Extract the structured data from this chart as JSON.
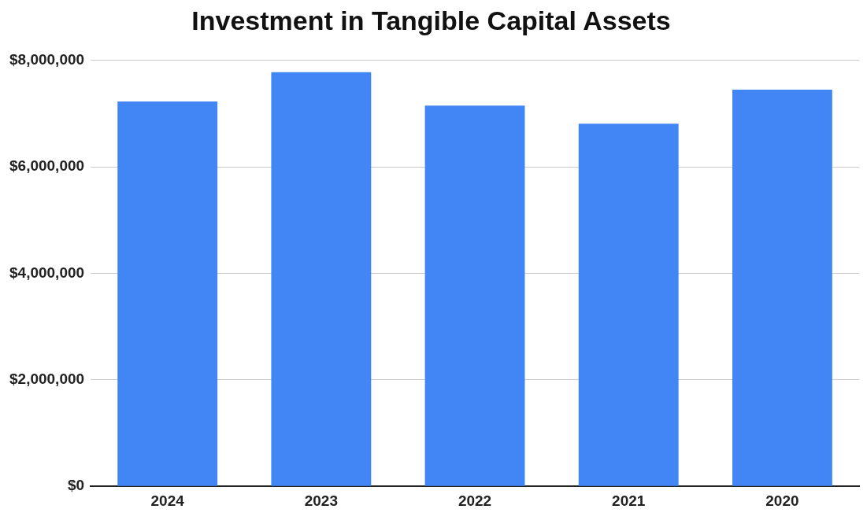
{
  "chart_data": {
    "type": "bar",
    "title": "Investment in Tangible Capital Assets",
    "categories": [
      "2024",
      "2023",
      "2022",
      "2021",
      "2020"
    ],
    "values": [
      7230000,
      7780000,
      7150000,
      6810000,
      7450000
    ],
    "color": "#4285f4",
    "ylim": [
      0,
      8000000
    ],
    "yticks": [
      {
        "value": 0,
        "label": "$0"
      },
      {
        "value": 2000000,
        "label": "$2,000,000"
      },
      {
        "value": 4000000,
        "label": "$4,000,000"
      },
      {
        "value": 6000000,
        "label": "$6,000,000"
      },
      {
        "value": 8000000,
        "label": "$8,000,000"
      }
    ],
    "grid": "y"
  }
}
